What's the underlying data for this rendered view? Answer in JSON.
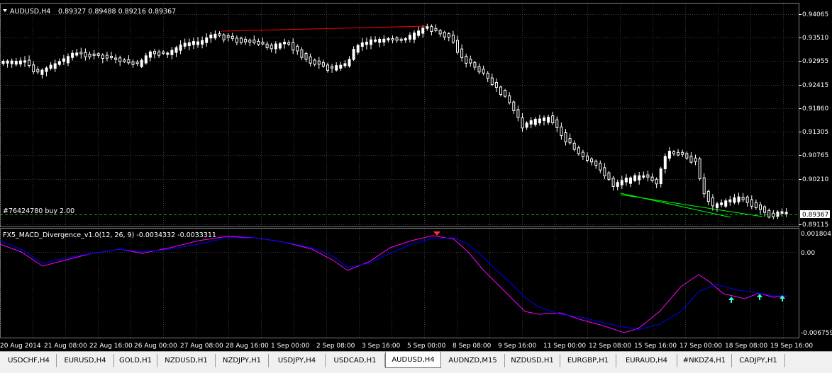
{
  "window": {
    "symbol_label": "AUDUSD,H4",
    "ohlc": "0.89327 0.89488 0.89216 0.89367",
    "order_label": "#76424780 buy 2.00",
    "current_price": "0.89367"
  },
  "indicator": {
    "label": "FX5_MACD_Divergence_v1.0(12, 26, 9) -0.0034332 -0.0033311",
    "scale_top": "0.001804",
    "scale_mid": "0.00",
    "scale_bottom": "-0.006759"
  },
  "price_axis": [
    "0.94065",
    "0.93510",
    "0.92955",
    "0.92415",
    "0.91860",
    "0.91305",
    "0.90765",
    "0.90210",
    "0.89115"
  ],
  "time_axis": [
    "20 Aug 2014",
    "21 Aug 08:00",
    "22 Aug 16:00",
    "26 Aug 00:00",
    "27 Aug 08:00",
    "28 Aug 16:00",
    "1 Sep 00:00",
    "2 Sep 08:00",
    "3 Sep 16:00",
    "5 Sep 00:00",
    "8 Sep 08:00",
    "9 Sep 16:00",
    "11 Sep 00:00",
    "12 Sep 08:00",
    "15 Sep 16:00",
    "17 Sep 00:00",
    "18 Sep 08:00",
    "19 Sep 16:00"
  ],
  "tabs": [
    "USDCHF,H4",
    "EURUSD,H4",
    "GOLD,H1",
    "NZDUSD,H1",
    "NZDJPY,H1",
    "USDJPY,H4",
    "USDCAD,H1",
    "AUDUSD,H4",
    "AUDNZD,M15",
    "NZDUSD,H1",
    "EURGBP,H1",
    "EURAUD,H4",
    "#NKDZ4,H1",
    "CADJPY,H1"
  ],
  "active_tab": 7,
  "colors": {
    "background": "#000000",
    "candle": "#ffffff",
    "macd_line": "#0000ff",
    "signal_line": "#ff00ff",
    "divergence_bear": "#ff0000",
    "divergence_bull": "#00ff00",
    "up_arrow": "#33ffcc"
  }
}
